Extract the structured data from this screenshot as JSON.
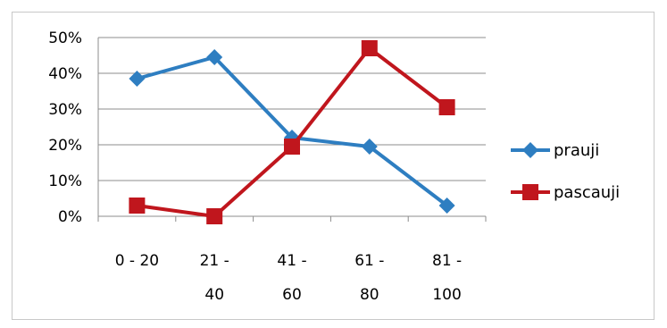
{
  "chart_data": {
    "type": "line",
    "title": "",
    "xlabel": "",
    "ylabel": "",
    "ylim": [
      0,
      50
    ],
    "y_ticks": [
      "0%",
      "10%",
      "20%",
      "30%",
      "40%",
      "50%"
    ],
    "grid": "horizontal",
    "legend_position": "right",
    "categories": [
      {
        "line1": "0 -",
        "line2": "20",
        "inline": true
      },
      {
        "line1": "21 -",
        "line2": "40",
        "inline": false
      },
      {
        "line1": "41 -",
        "line2": "60",
        "inline": false
      },
      {
        "line1": "61 -",
        "line2": "80",
        "inline": false
      },
      {
        "line1": "81 -",
        "line2": "100",
        "inline": false
      }
    ],
    "series": [
      {
        "name": "prauji",
        "marker": "diamond",
        "color": "#2E7EC1",
        "values": [
          38.5,
          44.5,
          22,
          19.5,
          3
        ]
      },
      {
        "name": "pascauji",
        "marker": "square",
        "color": "#C0161D",
        "values": [
          3,
          0,
          19.5,
          47,
          30.5
        ]
      }
    ]
  }
}
